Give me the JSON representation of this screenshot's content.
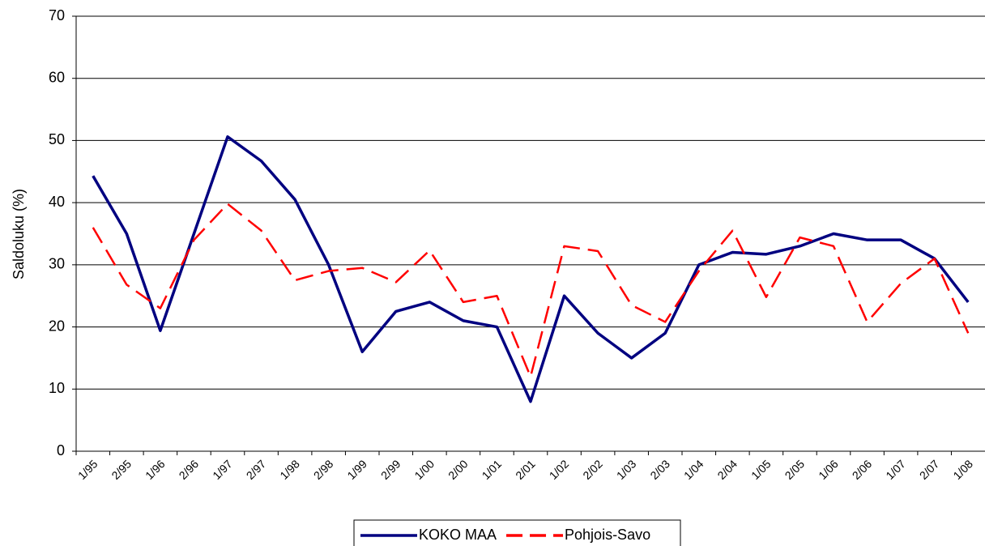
{
  "chart_data": {
    "type": "line",
    "y_label": "Saldoluku (%)",
    "categories": [
      "1/95",
      "2/95",
      "1/96",
      "2/96",
      "1/97",
      "2/97",
      "1/98",
      "2/98",
      "1/99",
      "2/99",
      "1/00",
      "2/00",
      "1/01",
      "2/01",
      "1/02",
      "2/02",
      "1/03",
      "2/03",
      "1/04",
      "2/04",
      "1/05",
      "2/05",
      "1/06",
      "2/06",
      "1/07",
      "2/07",
      "1/08"
    ],
    "series": [
      {
        "name": "KOKO MAA",
        "color": "#000080",
        "style": "solid",
        "values": [
          44.3,
          35,
          19.4,
          35,
          50.6,
          46.7,
          40.5,
          30,
          16,
          22.5,
          24,
          21,
          20,
          8,
          25,
          19,
          15,
          19,
          30,
          32,
          31.7,
          33,
          35,
          34,
          34,
          31,
          24
        ]
      },
      {
        "name": "Pohjois-Savo",
        "color": "#ff0000",
        "style": "dashed",
        "values": [
          36,
          26.8,
          23,
          34,
          39.8,
          35.5,
          27.5,
          29,
          29.5,
          27.2,
          32.3,
          24,
          25,
          12,
          33,
          32.2,
          23.5,
          20.8,
          29,
          35.5,
          24.8,
          34.4,
          33,
          20.8,
          27,
          31,
          19
        ]
      }
    ],
    "ylim": [
      0,
      70
    ],
    "yticks": [
      0,
      10,
      20,
      30,
      40,
      50,
      60,
      70
    ],
    "grid": true,
    "legend": "bottom"
  }
}
